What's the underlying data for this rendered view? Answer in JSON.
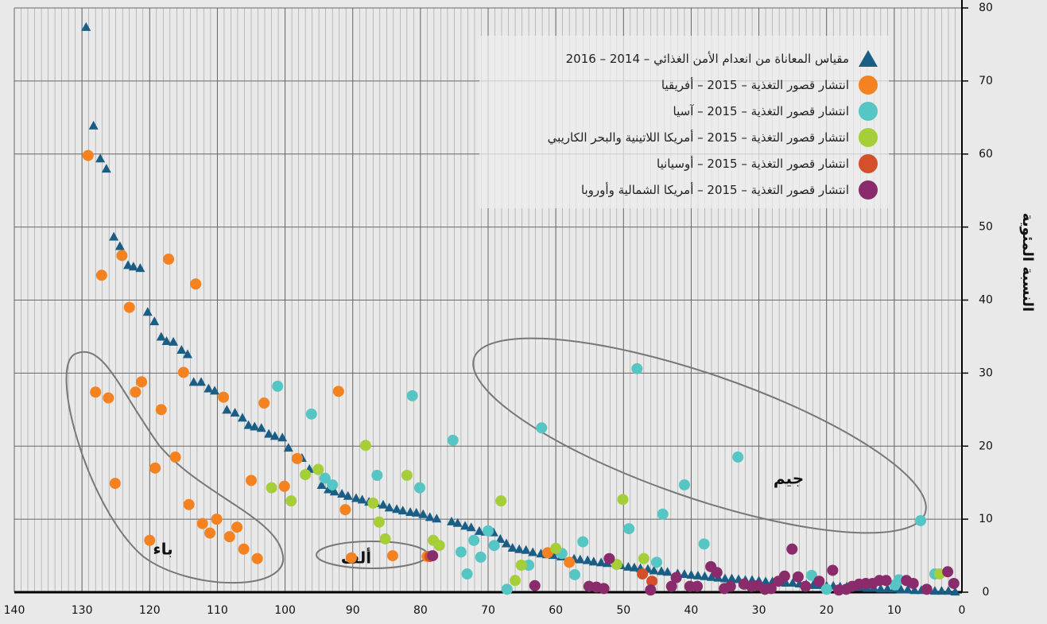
{
  "chart_data": {
    "type": "scatter",
    "y_label": "النسبة المئوية",
    "xlim": [
      140,
      0
    ],
    "ylim": [
      0,
      80
    ],
    "xticks": [
      140,
      130,
      120,
      110,
      100,
      90,
      80,
      70,
      60,
      50,
      40,
      30,
      20,
      10,
      0
    ],
    "yticks": [
      0,
      10,
      20,
      30,
      40,
      50,
      60,
      70,
      80
    ],
    "grid": true,
    "minor_grid_step": 1,
    "legend": "top-right",
    "annotations": [
      {
        "text": "ألف"
      },
      {
        "text": "باء"
      },
      {
        "text": "جيم"
      }
    ],
    "series": [
      {
        "name": "مقياس المعاناة من انعدام الأمن الغذائي – 2014 – 2016",
        "color": "#1a5e86",
        "marker": "triangle",
        "x": [
          129.4,
          128.3,
          127.3,
          126.4,
          125.3,
          124.4,
          123.2,
          122.4,
          121.4,
          120.3,
          119.3,
          118.3,
          117.5,
          116.5,
          115.3,
          114.4,
          113.5,
          112.4,
          111.3,
          110.4,
          108.6,
          107.4,
          106.3,
          105.4,
          104.5,
          103.5,
          102.4,
          101.5,
          100.4,
          99.5,
          97.5,
          96.4,
          94.6,
          93.6,
          92.7,
          91.6,
          90.7,
          89.5,
          88.6,
          87.6,
          86.6,
          85.5,
          84.6,
          83.5,
          82.6,
          81.5,
          80.6,
          79.6,
          78.6,
          77.6,
          75.4,
          74.5,
          73.4,
          72.5,
          71.3,
          70.4,
          69.2,
          68.2,
          67.3,
          66.4,
          65.4,
          64.4,
          63.4,
          62.2,
          61.3,
          60.4,
          59.2,
          57.3,
          56.4,
          55.3,
          54.4,
          53.3,
          52.4,
          50.4,
          49.3,
          48.4,
          47.5,
          46.4,
          45.5,
          44.4,
          43.5,
          42,
          41,
          40,
          39,
          38,
          37,
          36,
          35,
          34,
          33,
          32,
          31,
          30,
          29,
          28,
          27,
          26,
          25,
          24,
          23,
          22,
          21,
          20,
          19,
          18,
          17,
          16,
          15,
          14,
          13,
          12,
          11,
          10,
          9,
          8,
          7,
          6,
          5,
          4,
          3,
          2,
          1
        ],
        "values": [
          77.4,
          63.9,
          59.4,
          58.0,
          48.7,
          47.4,
          44.8,
          44.6,
          44.4,
          38.4,
          37.1,
          35.0,
          34.4,
          34.3,
          33.2,
          32.6,
          28.8,
          28.8,
          27.9,
          27.6,
          25.0,
          24.6,
          23.9,
          22.9,
          22.7,
          22.5,
          21.7,
          21.4,
          21.2,
          19.8,
          18.4,
          16.9,
          14.7,
          14.1,
          13.8,
          13.5,
          13.2,
          12.9,
          12.7,
          12.4,
          12.2,
          12.0,
          11.6,
          11.4,
          11.2,
          11.0,
          10.9,
          10.7,
          10.3,
          10.1,
          9.7,
          9.5,
          9.1,
          8.9,
          8.4,
          8.3,
          8.2,
          7.3,
          6.7,
          6.1,
          5.9,
          5.8,
          5.5,
          5.3,
          5.2,
          5.1,
          4.9,
          4.6,
          4.5,
          4.4,
          4.2,
          4.1,
          4.0,
          3.7,
          3.5,
          3.4,
          3.3,
          3.2,
          3.0,
          2.9,
          2.8,
          2.6,
          2.5,
          2.4,
          2.3,
          2.2,
          2.1,
          2.0,
          1.9,
          1.9,
          1.8,
          1.7,
          1.7,
          1.6,
          1.5,
          1.5,
          1.4,
          1.3,
          1.3,
          1.2,
          1.1,
          1.0,
          1.0,
          0.9,
          0.9,
          0.8,
          0.8,
          0.7,
          0.7,
          0.6,
          0.6,
          0.5,
          0.5,
          0.5,
          0.4,
          0.4,
          0.3,
          0.3,
          0.3,
          0.2,
          0.2,
          0.2,
          0.1
        ]
      },
      {
        "name": "انتشار قصور التغذية – 2015 – أفريقيا",
        "color": "#f58220",
        "marker": "circle",
        "x": [
          129.1,
          127.1,
          124.1,
          123.0,
          128.0,
          126.1,
          122.1,
          121.2,
          117.2,
          113.2,
          125.1,
          119.2,
          118.3,
          116.2,
          115.0,
          114.2,
          112.2,
          111.1,
          110.1,
          109.1,
          120.0,
          108.2,
          107.1,
          106.1,
          105.0,
          104.1,
          103.1,
          100.1,
          98.2,
          92.1,
          91.1,
          90.2,
          84.1,
          79.0,
          61.2,
          58.0
        ],
        "values": [
          59.8,
          43.4,
          46.1,
          39.0,
          27.4,
          26.6,
          27.4,
          28.8,
          45.6,
          42.2,
          14.9,
          17.0,
          25.0,
          18.5,
          30.1,
          12.0,
          9.4,
          8.1,
          10.0,
          26.7,
          7.1,
          7.6,
          8.9,
          5.9,
          15.3,
          4.6,
          25.9,
          14.5,
          18.3,
          27.5,
          11.3,
          4.7,
          5.0,
          4.9,
          5.4,
          4.1
        ]
      },
      {
        "name": "انتشار قصور التغذية – 2015 – آسيا",
        "color": "#55c6c4",
        "marker": "circle",
        "x": [
          101.1,
          96.1,
          94.1,
          93.0,
          86.4,
          81.2,
          80.1,
          75.2,
          74.0,
          73.1,
          72.1,
          71.1,
          70.0,
          69.1,
          67.2,
          64.0,
          62.1,
          59.1,
          57.2,
          56.0,
          49.2,
          48.0,
          45.1,
          44.2,
          41.0,
          38.1,
          33.1,
          22.2,
          20.0,
          9.9,
          9.3,
          6.1,
          4.0
        ],
        "values": [
          28.2,
          24.4,
          15.6,
          14.7,
          16.0,
          26.9,
          14.3,
          20.8,
          5.5,
          2.5,
          7.1,
          4.8,
          8.4,
          6.4,
          0.4,
          3.7,
          22.5,
          5.3,
          2.4,
          6.9,
          8.7,
          30.6,
          4.1,
          10.7,
          14.7,
          6.6,
          18.5,
          2.3,
          0.4,
          1.0,
          1.7,
          9.8,
          2.5
        ]
      },
      {
        "name": "انتشار قصور التغذية – 2015 – أمريكا اللاتينية والبحر الكاريبي",
        "color": "#a6ce39",
        "marker": "circle",
        "x": [
          102.0,
          99.1,
          97.0,
          95.1,
          88.1,
          87.0,
          86.1,
          85.2,
          82.0,
          78.1,
          77.2,
          68.1,
          66.0,
          65.1,
          60.0,
          51.0,
          50.1,
          47.0,
          3.3
        ],
        "values": [
          14.3,
          12.5,
          16.1,
          16.8,
          20.1,
          12.2,
          9.6,
          7.3,
          16.0,
          7.1,
          6.4,
          12.5,
          1.6,
          3.7,
          6.0,
          3.8,
          12.7,
          4.6,
          2.5
        ]
      },
      {
        "name": "انتشار قصور التغذية – 2015 – أوسيانيا",
        "color": "#d4502a",
        "marker": "circle",
        "x": [
          78.6,
          47.2,
          45.8
        ],
        "values": [
          4.9,
          2.5,
          1.5
        ]
      },
      {
        "name": "انتشار قصور التغذية – 2015 – أمريكا الشمالية وأوروبا",
        "color": "#8a2c6b",
        "marker": "circle",
        "x": [
          78.2,
          63.1,
          55.1,
          54.0,
          52.9,
          52.1,
          46.0,
          42.2,
          42.9,
          40.2,
          39.1,
          37.1,
          36.2,
          35.1,
          34.2,
          32.2,
          31.1,
          30.2,
          29.1,
          28.2,
          27.1,
          26.2,
          25.1,
          24.2,
          23.1,
          21.1,
          19.1,
          18.2,
          17.1,
          16.2,
          15.2,
          14.2,
          13.2,
          12.2,
          11.2,
          8.2,
          7.2,
          5.2,
          2.1,
          1.2
        ],
        "values": [
          5.0,
          0.9,
          0.8,
          0.7,
          0.5,
          4.6,
          0.3,
          2.0,
          0.8,
          0.8,
          0.8,
          3.5,
          2.7,
          0.5,
          0.8,
          1.1,
          0.8,
          0.9,
          0.4,
          0.5,
          1.5,
          2.2,
          5.9,
          2.1,
          0.8,
          1.5,
          3.0,
          0.3,
          0.4,
          0.8,
          1.1,
          1.2,
          1.2,
          1.6,
          1.6,
          1.6,
          1.2,
          0.4,
          2.8,
          1.2
        ]
      }
    ]
  }
}
